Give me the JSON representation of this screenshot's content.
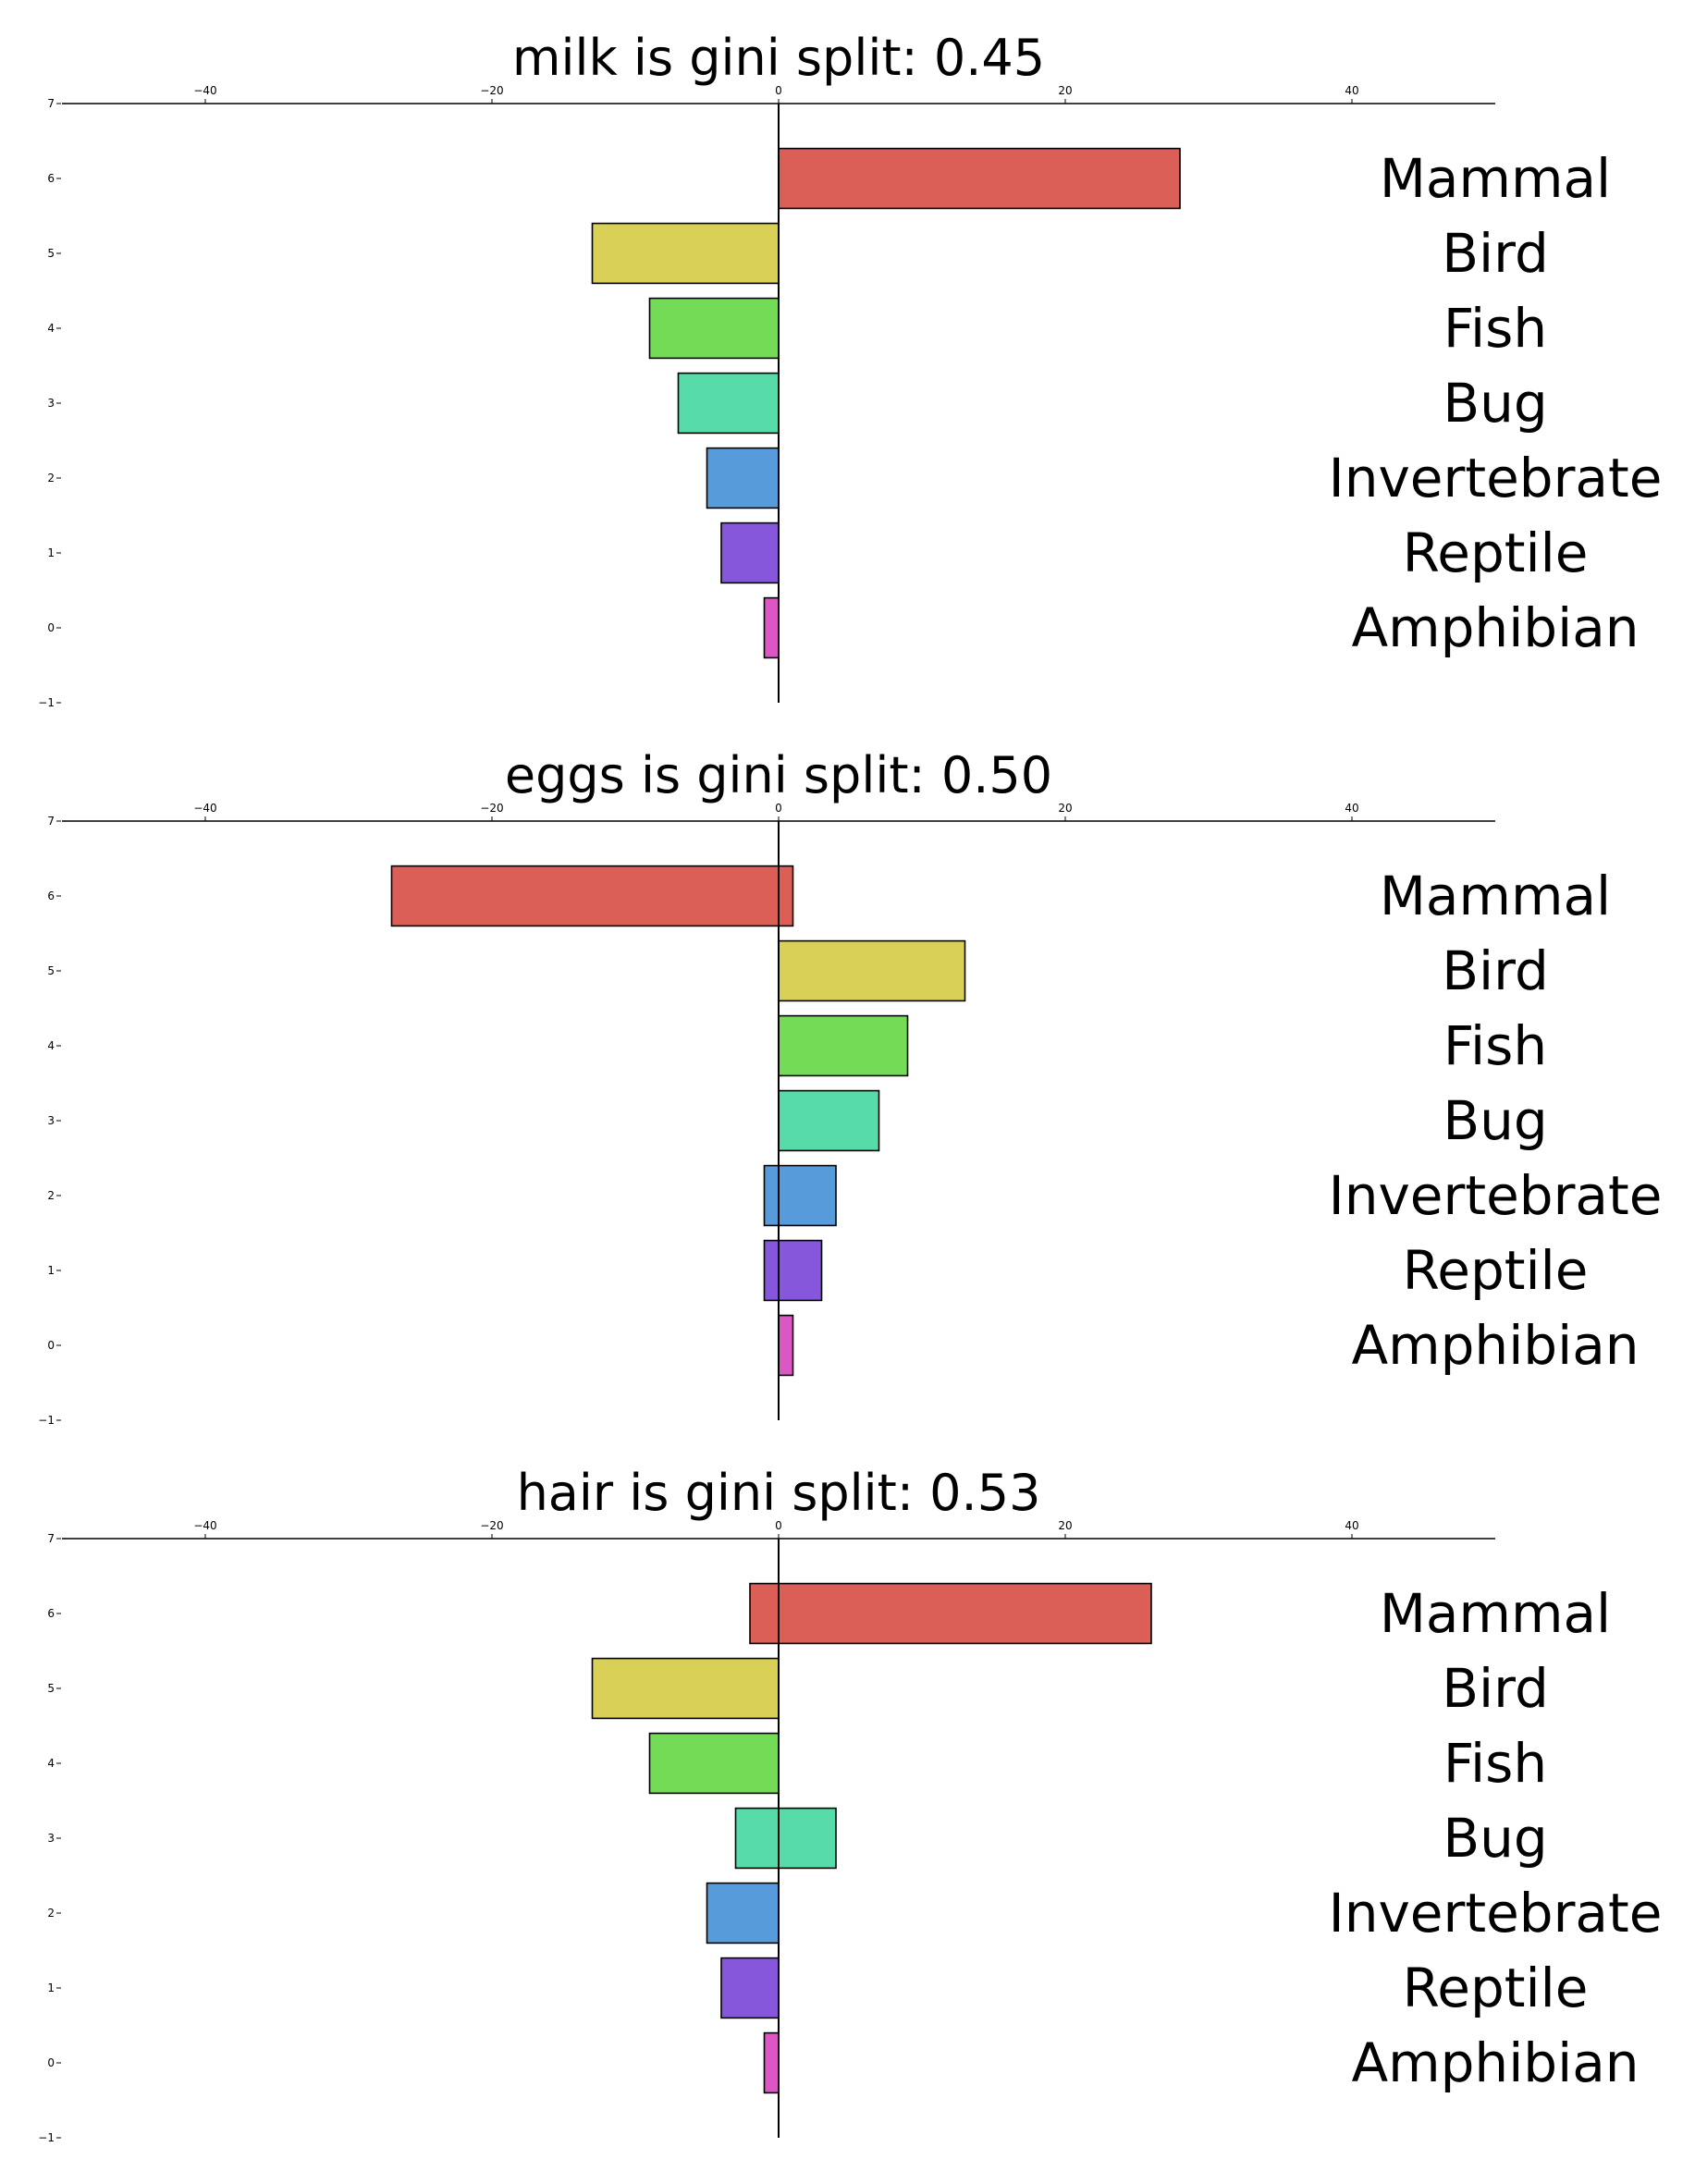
{
  "figure": {
    "background": "#ffffff"
  },
  "chart_data": [
    {
      "type": "bar",
      "orientation": "horizontal",
      "title": "milk is gini split: 0.45",
      "categories": [
        "Mammal",
        "Bird",
        "Fish",
        "Bug",
        "Invertebrate",
        "Reptile",
        "Amphibian"
      ],
      "series": [
        {
          "values": [
            28,
            0,
            0,
            0,
            0,
            0,
            0
          ]
        },
        {
          "values": [
            0,
            -13,
            -9,
            -7,
            -5,
            -4,
            -1
          ]
        }
      ],
      "xlim": [
        -50,
        50
      ],
      "ylim": [
        -1,
        7
      ],
      "xticks": [
        -40,
        -20,
        0,
        20,
        40
      ],
      "yticks": [
        -1,
        0,
        1,
        2,
        3,
        4,
        5,
        6,
        7
      ],
      "xtick_labels": [
        "−40",
        "−20",
        "0",
        "20",
        "40"
      ],
      "ytick_labels": [
        "−1",
        "0",
        "1",
        "2",
        "3",
        "4",
        "5",
        "6",
        "7"
      ],
      "x_axis_position": "top",
      "grid": false,
      "legend": "none"
    },
    {
      "type": "bar",
      "orientation": "horizontal",
      "title": "eggs is gini split: 0.50",
      "categories": [
        "Mammal",
        "Bird",
        "Fish",
        "Bug",
        "Invertebrate",
        "Reptile",
        "Amphibian"
      ],
      "series": [
        {
          "values": [
            1,
            13,
            9,
            7,
            4,
            3,
            1
          ]
        },
        {
          "values": [
            -27,
            0,
            0,
            0,
            -1,
            -1,
            0
          ]
        }
      ],
      "xlim": [
        -50,
        50
      ],
      "ylim": [
        -1,
        7
      ],
      "xticks": [
        -40,
        -20,
        0,
        20,
        40
      ],
      "yticks": [
        -1,
        0,
        1,
        2,
        3,
        4,
        5,
        6,
        7
      ],
      "xtick_labels": [
        "−40",
        "−20",
        "0",
        "20",
        "40"
      ],
      "ytick_labels": [
        "−1",
        "0",
        "1",
        "2",
        "3",
        "4",
        "5",
        "6",
        "7"
      ],
      "x_axis_position": "top",
      "grid": false,
      "legend": "none"
    },
    {
      "type": "bar",
      "orientation": "horizontal",
      "title": "hair is gini split: 0.53",
      "categories": [
        "Mammal",
        "Bird",
        "Fish",
        "Bug",
        "Invertebrate",
        "Reptile",
        "Amphibian"
      ],
      "series": [
        {
          "values": [
            26,
            0,
            0,
            4,
            0,
            0,
            0
          ]
        },
        {
          "values": [
            -2,
            -13,
            -9,
            -3,
            -5,
            -4,
            -1
          ]
        }
      ],
      "xlim": [
        -50,
        50
      ],
      "ylim": [
        -1,
        7
      ],
      "xticks": [
        -40,
        -20,
        0,
        20,
        40
      ],
      "yticks": [
        -1,
        0,
        1,
        2,
        3,
        4,
        5,
        6,
        7
      ],
      "xtick_labels": [
        "−40",
        "−20",
        "0",
        "20",
        "40"
      ],
      "ytick_labels": [
        "−1",
        "0",
        "1",
        "2",
        "3",
        "4",
        "5",
        "6",
        "7"
      ],
      "x_axis_position": "top",
      "grid": false,
      "legend": "none"
    }
  ],
  "category_colors": {
    "Mammal": "#db5f57",
    "Bird": "#d9d157",
    "Fish": "#74db57",
    "Bug": "#57dba9",
    "Invertebrate": "#579bdb",
    "Reptile": "#8757db",
    "Amphibian": "#db57c3"
  },
  "bar_edge_color": "#000000"
}
